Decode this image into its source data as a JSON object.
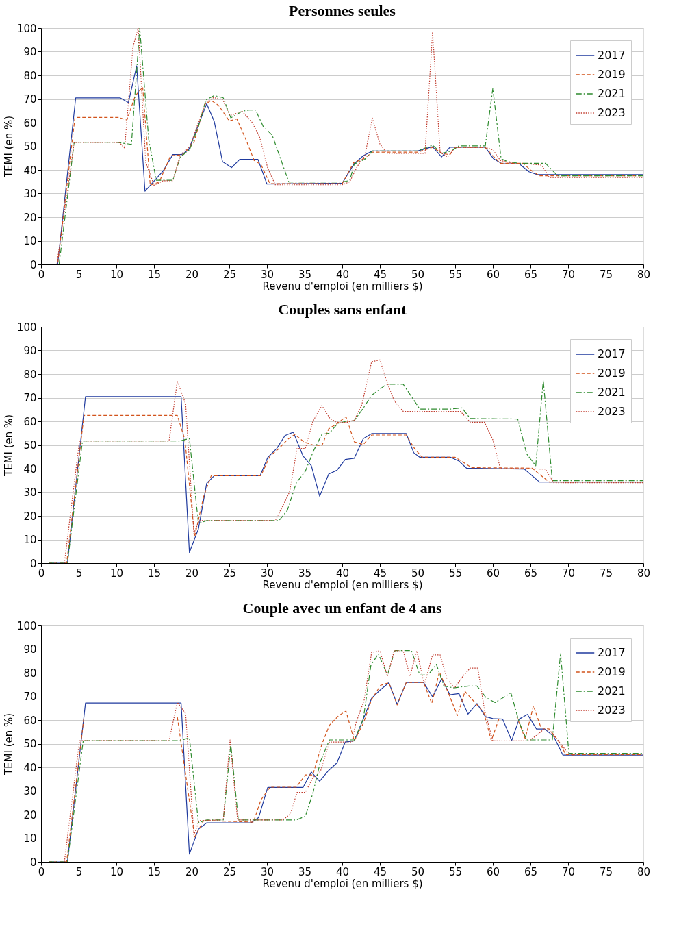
{
  "chart_data": [
    {
      "type": "line",
      "title": "Personnes seules",
      "xlabel": "Revenu d'emploi (en milliers $)",
      "ylabel": "TEMI (en %)",
      "xlim": [
        0,
        80
      ],
      "ylim": [
        0,
        100
      ],
      "xticks": [
        0,
        5,
        10,
        15,
        20,
        25,
        30,
        35,
        40,
        45,
        50,
        55,
        60,
        65,
        70,
        75,
        80
      ],
      "yticks": [
        0,
        10,
        20,
        30,
        40,
        50,
        60,
        70,
        80,
        90,
        100
      ],
      "grid": "y",
      "legend": "top right",
      "marker": "none",
      "series": [
        {
          "name": "2017",
          "color": "#1f3a9e",
          "line_style": "solid",
          "x": [
            1,
            2.2,
            4.6,
            10.5,
            11.6,
            12.7,
            13.8,
            16.2,
            17.5,
            18.7,
            19.6,
            22,
            23,
            24.1,
            25.3,
            26.4,
            28.8,
            30,
            40,
            41.6,
            42.8,
            44,
            50,
            52,
            53.2,
            54.3,
            59,
            60.1,
            61.2,
            63.5,
            64.8,
            65.9,
            80
          ],
          "values": [
            0,
            0,
            70.5,
            70.5,
            68.5,
            84,
            31,
            39.5,
            46.5,
            46.5,
            48.5,
            68,
            60.5,
            43.5,
            41,
            44.5,
            44.5,
            34,
            34.4,
            42.7,
            46,
            48,
            48,
            49.8,
            45.5,
            49.6,
            49.6,
            44.7,
            42.6,
            42.6,
            39.2,
            38,
            38
          ]
        },
        {
          "name": "2019",
          "color": "#d2541c",
          "line_style": "dashed",
          "x": [
            1,
            2.2,
            4.5,
            10.3,
            11.4,
            12.5,
            13.5,
            14.5,
            15.7,
            17.2,
            18.8,
            20.3,
            21.7,
            22.6,
            23.6,
            25,
            26,
            27.2,
            28.3,
            29.2,
            30.4,
            40,
            41.5,
            43,
            44,
            50,
            52,
            53.3,
            54.3,
            55,
            59,
            60,
            61,
            64,
            65,
            66.2,
            80
          ],
          "values": [
            0,
            0,
            62.2,
            62.2,
            61.1,
            71.3,
            75,
            33.5,
            34.9,
            46,
            46.4,
            51.5,
            67.6,
            69.4,
            67.2,
            60.7,
            61.6,
            52.9,
            44,
            42.3,
            34.2,
            34.2,
            43,
            45,
            47.5,
            47.5,
            49.5,
            47,
            46.4,
            49.5,
            49.5,
            46,
            42.8,
            42.8,
            40,
            37.5,
            37.5
          ]
        },
        {
          "name": "2021",
          "color": "#2e8b2e",
          "line_style": "dashdot",
          "x": [
            1,
            2.4,
            4.4,
            10,
            12,
            13.1,
            14.3,
            15.3,
            17.5,
            18.5,
            19.7,
            20.9,
            21.9,
            23,
            24.2,
            25.2,
            26.7,
            27.6,
            28.5,
            29.5,
            30.7,
            32.9,
            40,
            41,
            41.6,
            43,
            44,
            50,
            52,
            53.2,
            54.5,
            55.5,
            59,
            60,
            61.1,
            62,
            63.5,
            67,
            68.6,
            80
          ],
          "values": [
            0,
            0,
            51.7,
            51.7,
            50.8,
            100,
            52.8,
            35.6,
            35.6,
            45.5,
            48.4,
            58.4,
            69.6,
            71.5,
            70.5,
            62,
            64.8,
            65.3,
            65.3,
            58.4,
            54.7,
            34.9,
            34.9,
            35.5,
            42.5,
            44.5,
            48,
            48,
            50.5,
            47,
            48,
            50.2,
            50.2,
            74.5,
            44.7,
            43.5,
            42.8,
            42.8,
            37.5,
            37.5
          ]
        },
        {
          "name": "2023",
          "color": "#c0392b",
          "line_style": "dotted",
          "x": [
            2.1,
            4.4,
            10.4,
            11.1,
            12.2,
            12.9,
            13.9,
            15,
            16.2,
            17.5,
            18.5,
            19.8,
            21,
            21.9,
            22.9,
            24.1,
            25.1,
            26.7,
            28,
            29,
            30.1,
            31.1,
            40,
            41,
            42,
            43,
            44,
            45,
            46,
            51,
            52,
            53,
            54,
            55,
            59,
            60,
            61,
            63,
            65,
            66.5,
            67.5,
            80
          ],
          "values": [
            0,
            51.6,
            51.6,
            49.2,
            92,
            100,
            43.3,
            33.5,
            35.4,
            35.4,
            46.4,
            50,
            61,
            68.5,
            70.6,
            69.9,
            63,
            64.8,
            60.2,
            54.2,
            40.8,
            33.7,
            33.7,
            35,
            41.5,
            46,
            61.9,
            51,
            47,
            47,
            98.4,
            47.5,
            45.5,
            49.5,
            49.5,
            48.5,
            44,
            42.5,
            42.5,
            42,
            36.8,
            36.8
          ]
        }
      ]
    },
    {
      "type": "line",
      "title": "Couples sans enfant",
      "xlabel": "Revenu d'emploi (en milliers $)",
      "ylabel": "TEMI (en %)",
      "xlim": [
        0,
        80
      ],
      "ylim": [
        0,
        100
      ],
      "xticks": [
        0,
        5,
        10,
        15,
        20,
        25,
        30,
        35,
        40,
        45,
        50,
        55,
        60,
        65,
        70,
        75,
        80
      ],
      "yticks": [
        0,
        10,
        20,
        30,
        40,
        50,
        60,
        70,
        80,
        90,
        100
      ],
      "grid": "y",
      "legend": "top right",
      "marker": "none",
      "series": [
        {
          "name": "2017",
          "color": "#1f3a9e",
          "line_style": "solid",
          "x": [
            1,
            3.5,
            5.9,
            18.6,
            19.7,
            20.9,
            22,
            23,
            29.1,
            30.1,
            31.3,
            32.4,
            33.5,
            34.8,
            35.9,
            37,
            38.2,
            39.3,
            40.4,
            41.6,
            42.8,
            43.9,
            48.5,
            49.5,
            50.3,
            54.4,
            55.5,
            56.5,
            64.2,
            66.2,
            80
          ],
          "values": [
            0,
            0,
            70.5,
            70.5,
            4.5,
            14.5,
            33.8,
            37,
            37,
            44.7,
            48.5,
            54,
            55.4,
            45.3,
            41.2,
            28.3,
            37.7,
            39.3,
            43.9,
            44.4,
            52.7,
            54.8,
            54.8,
            46.7,
            44.8,
            44.8,
            43.2,
            40.2,
            39.8,
            34.3,
            34.3
          ]
        },
        {
          "name": "2019",
          "color": "#d2541c",
          "line_style": "dashed",
          "x": [
            1,
            3.4,
            5.7,
            18.1,
            19.1,
            20.4,
            21.6,
            22.6,
            29.2,
            30.4,
            31.6,
            32.7,
            33.7,
            34.9,
            36.1,
            37.3,
            38.2,
            39.3,
            40.5,
            41.6,
            42.8,
            43.9,
            48.5,
            49.6,
            50.6,
            55,
            57.2,
            65.2,
            67.5,
            80
          ],
          "values": [
            0,
            0,
            62.5,
            62.5,
            52.2,
            11.2,
            28.3,
            37,
            37,
            45.3,
            48.5,
            52.2,
            54.5,
            51.3,
            50,
            49.7,
            56.8,
            59,
            62,
            51.3,
            50.2,
            54.2,
            54.2,
            48.5,
            44.8,
            44.8,
            40.4,
            40.2,
            34.3,
            34.3
          ]
        },
        {
          "name": "2021",
          "color": "#2e8b2e",
          "line_style": "dashdot",
          "x": [
            1,
            3.5,
            5.5,
            18.5,
            19.7,
            20.9,
            22,
            31.6,
            32.7,
            33.9,
            35.1,
            36.2,
            37.3,
            38.3,
            39.4,
            40.5,
            41.6,
            42.8,
            43.9,
            45.9,
            48.1,
            50.3,
            54.4,
            55.9,
            57,
            63.3,
            64.5,
            65.7,
            66.7,
            67.9,
            80
          ],
          "values": [
            0,
            0,
            51.7,
            51.7,
            52.7,
            16.8,
            18,
            18,
            22.3,
            34,
            38.9,
            47.6,
            54.5,
            55,
            59.1,
            60,
            60.3,
            65.6,
            71,
            75.7,
            75.7,
            65.2,
            65.2,
            65.7,
            61.2,
            61,
            46.2,
            41.2,
            77.3,
            34.9,
            34.9
          ]
        },
        {
          "name": "2023",
          "color": "#c0392b",
          "line_style": "dotted",
          "x": [
            3.1,
            5.1,
            17,
            18.1,
            19.2,
            20.3,
            21,
            31.1,
            32.1,
            33,
            34,
            35.1,
            36.1,
            37.3,
            38.3,
            39.2,
            40.6,
            41.6,
            42.6,
            43.9,
            45,
            45.9,
            46.9,
            48.1,
            55.7,
            57,
            58.9,
            60,
            61,
            67,
            67.5,
            68.1,
            80
          ],
          "values": [
            0,
            51.7,
            51.7,
            77,
            67.4,
            12.6,
            18,
            18,
            24.2,
            30.1,
            48.5,
            48.5,
            60,
            66.7,
            61.5,
            59.6,
            59.5,
            60.5,
            67,
            85.2,
            86,
            77,
            68.7,
            64.2,
            64.2,
            59.6,
            59.6,
            52.2,
            40.1,
            39.8,
            37,
            34,
            34
          ]
        }
      ]
    },
    {
      "type": "line",
      "title": "Couple avec un enfant de 4 ans",
      "xlabel": "Revenu d'emploi (en milliers $)",
      "ylabel": "TEMI (en %)",
      "xlim": [
        0,
        80
      ],
      "ylim": [
        0,
        100
      ],
      "xticks": [
        0,
        5,
        10,
        15,
        20,
        25,
        30,
        35,
        40,
        45,
        50,
        55,
        60,
        65,
        70,
        75,
        80
      ],
      "yticks": [
        0,
        10,
        20,
        30,
        40,
        50,
        60,
        70,
        80,
        90,
        100
      ],
      "grid": "y",
      "legend": "top right",
      "marker": "none",
      "series": [
        {
          "name": "2017",
          "color": "#1f3a9e",
          "line_style": "solid",
          "x": [
            1,
            3.5,
            5.9,
            18.6,
            19.7,
            20.9,
            22,
            27.9,
            28.9,
            30.1,
            34.8,
            35.9,
            37,
            38.2,
            39.3,
            40.4,
            41.6,
            42.8,
            43.9,
            45,
            46.2,
            47.3,
            48.5,
            50.8,
            52,
            53.2,
            54.3,
            55.5,
            56.7,
            57.9,
            59,
            60,
            61.3,
            62.5,
            63.5,
            64.6,
            65.8,
            66.9,
            68.1,
            69.3,
            80
          ],
          "values": [
            0,
            0,
            67.2,
            67.2,
            3.3,
            13.8,
            16.5,
            16.5,
            18.8,
            31.5,
            31.5,
            38,
            34.1,
            38.7,
            41.9,
            50.7,
            51.2,
            60.4,
            69.2,
            72.6,
            75.8,
            66.6,
            75.9,
            75.9,
            69.8,
            77.5,
            70.7,
            71.2,
            62.5,
            67,
            61.5,
            60.6,
            60.4,
            51.3,
            60.4,
            62.4,
            56.2,
            56.2,
            53,
            45.2,
            45.2
          ]
        },
        {
          "name": "2019",
          "color": "#d2541c",
          "line_style": "dashed",
          "x": [
            1,
            3.4,
            5.7,
            18.1,
            20.4,
            21.6,
            28.2,
            29.2,
            30.4,
            33.9,
            35.1,
            36.1,
            37.3,
            38.3,
            39.5,
            40.5,
            41.6,
            42.8,
            43.9,
            45.1,
            46.2,
            47.3,
            48.5,
            50.8,
            51.9,
            52.9,
            54.1,
            55.3,
            56.3,
            57.8,
            58.8,
            59.8,
            60.9,
            63.2,
            64.3,
            65.4,
            66.4,
            67.5,
            68.7,
            69.7,
            80
          ],
          "values": [
            0,
            0,
            61.3,
            61.3,
            10.5,
            17.5,
            16.8,
            26.2,
            31.6,
            31.6,
            36.8,
            36.8,
            49.8,
            57.8,
            61.8,
            63.8,
            51.2,
            58.6,
            68.7,
            74.7,
            75.8,
            66.4,
            75.9,
            75.9,
            67,
            80.4,
            71.4,
            61.9,
            72.1,
            66.8,
            63.2,
            51.3,
            61.3,
            61.3,
            52.1,
            66,
            56.7,
            56.2,
            51.2,
            45.4,
            45.4
          ]
        },
        {
          "name": "2021",
          "color": "#2e8b2e",
          "line_style": "dashdot",
          "x": [
            1,
            3.5,
            5.6,
            18.5,
            19.7,
            20.9,
            22,
            24.2,
            25.2,
            26.2,
            33.9,
            35.1,
            36.1,
            37.1,
            38.3,
            41.6,
            42.8,
            43.8,
            44.8,
            46,
            47,
            49.2,
            50.3,
            51.4,
            52.5,
            53.5,
            54.8,
            56.8,
            57.9,
            59.1,
            60.3,
            62.4,
            63.5,
            64.5,
            67.9,
            69,
            70.1,
            80
          ],
          "values": [
            0,
            0,
            51.3,
            51.3,
            52.5,
            16.5,
            17.7,
            17.7,
            49.8,
            17.7,
            17.7,
            19.3,
            29,
            42.4,
            51.6,
            51.6,
            60.4,
            83.1,
            88,
            79,
            89.4,
            89.4,
            79,
            79,
            83.6,
            74.4,
            73.6,
            74.4,
            74.4,
            69.5,
            67.4,
            71.5,
            59,
            51.6,
            51.6,
            88.3,
            45.9,
            45.9
          ]
        },
        {
          "name": "2023",
          "color": "#c0392b",
          "line_style": "dotted",
          "x": [
            3.1,
            5.1,
            17,
            18.1,
            19.2,
            20.3,
            21,
            24.2,
            25.1,
            26.1,
            32.1,
            33.1,
            34,
            35.1,
            36.1,
            37.1,
            38.3,
            41.3,
            41.8,
            42.9,
            43.9,
            45,
            46,
            46.9,
            48.1,
            49,
            49.9,
            50.9,
            52,
            53,
            53.9,
            54.9,
            56,
            57,
            58,
            58.9,
            60,
            64.8,
            65.8,
            66.8,
            67.7,
            68.7,
            69.8,
            70.7,
            80
          ],
          "values": [
            0,
            51.3,
            51.3,
            67.5,
            62.7,
            11.4,
            17.5,
            17.7,
            51.6,
            17.7,
            17.7,
            20.2,
            29.4,
            29.4,
            35.6,
            38.2,
            50.7,
            50.7,
            58.6,
            68.3,
            88.6,
            89.3,
            78.5,
            89.3,
            89.3,
            78.5,
            89.3,
            75,
            87.6,
            87.6,
            77.5,
            73.5,
            78.4,
            82,
            82,
            64.2,
            51.2,
            51.2,
            53.5,
            56.2,
            55,
            51.2,
            46.8,
            44.8,
            44.8
          ]
        }
      ]
    }
  ]
}
